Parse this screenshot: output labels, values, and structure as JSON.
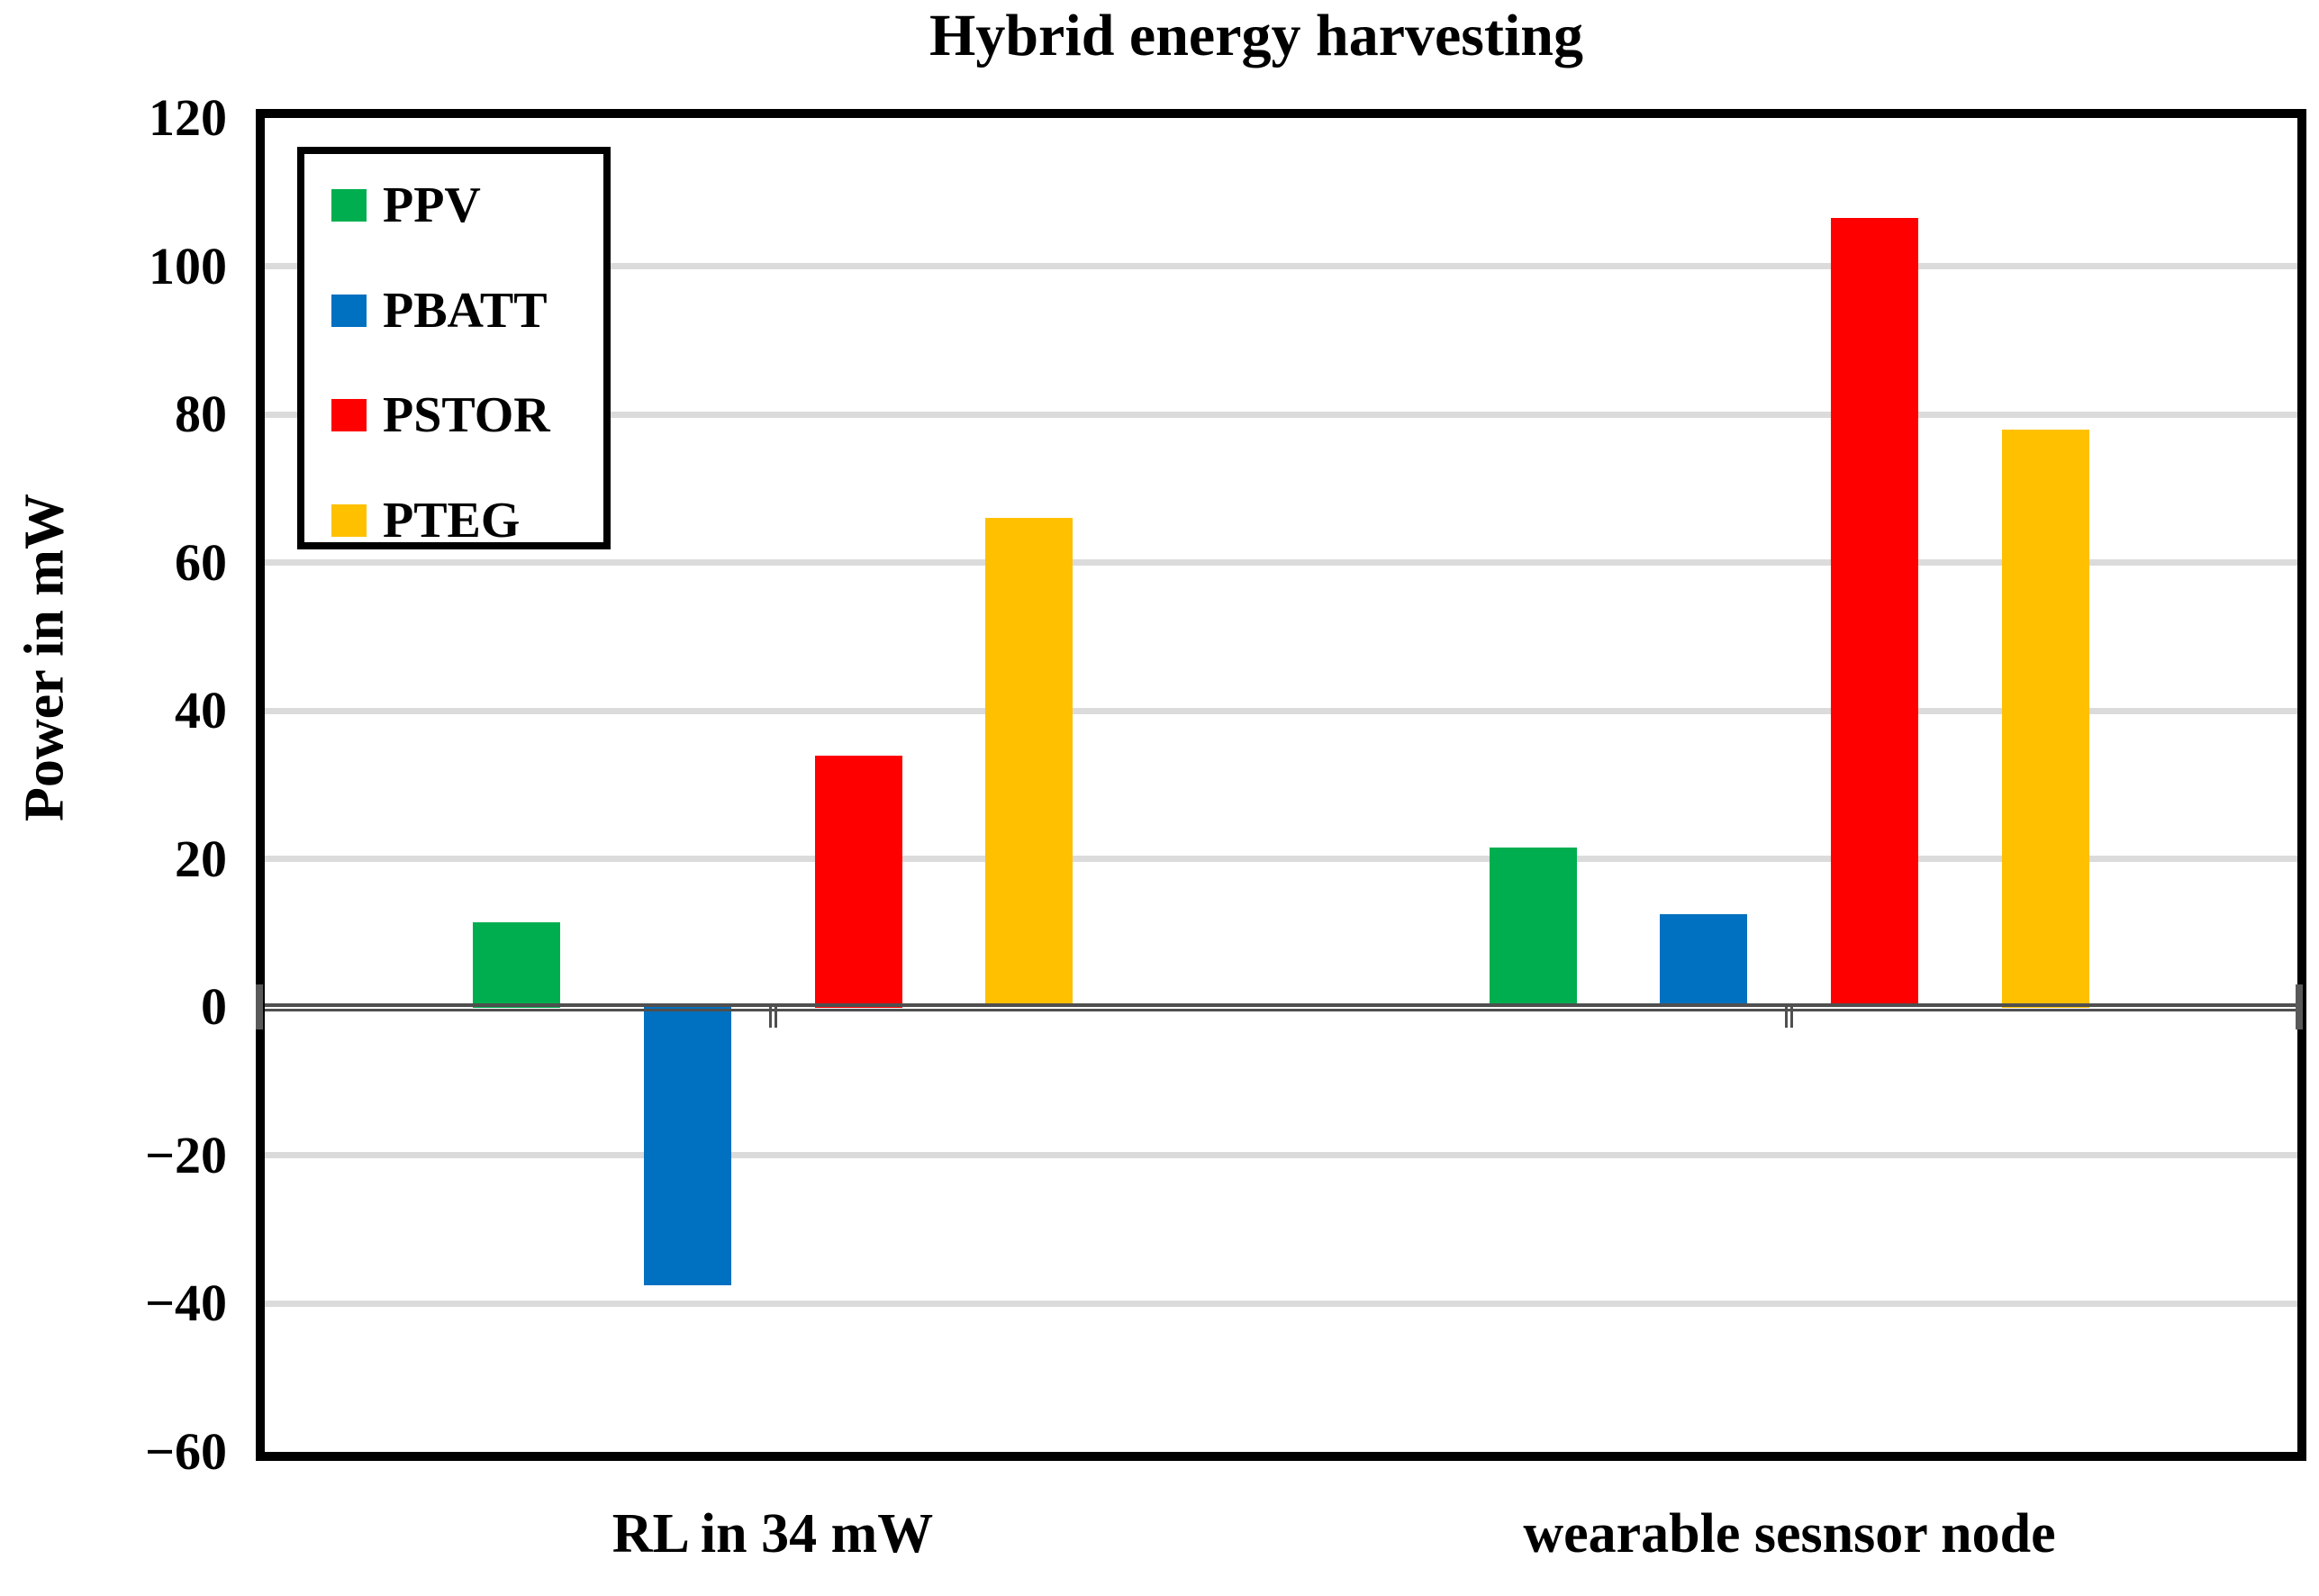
{
  "title": "Hybrid energy harvesting",
  "y_axis": {
    "label": "Power in mW",
    "tick_values": [
      120,
      100,
      80,
      60,
      40,
      20,
      0,
      -20,
      -40,
      -60
    ],
    "tick_labels": [
      "120",
      "100",
      "80",
      "60",
      "40",
      "20",
      "0",
      "−20",
      "−40",
      "−60"
    ]
  },
  "x_axis": {
    "category_labels": [
      "RL in 34 mW",
      "wearable sesnsor node"
    ]
  },
  "legend": {
    "entries": [
      "PPV",
      "PBATT",
      "PSTOR",
      "PTEG"
    ]
  },
  "colors": {
    "ppv": "#00ae4f",
    "pbatt": "#0070c0",
    "pstor": "#ff0000",
    "pteg": "#ffc000",
    "gridline": "#dbdbdb",
    "axis_line": "#4f4f4f",
    "plot_border": "#000000"
  },
  "chart_data": {
    "type": "bar",
    "title": "Hybrid energy harvesting",
    "categories": [
      "RL in 34 mW",
      "wearable sesnsor node"
    ],
    "series": [
      {
        "name": "PPV",
        "color": "#00ae4f",
        "values": [
          11.5,
          21.5
        ]
      },
      {
        "name": "PBATT",
        "color": "#0070c0",
        "values": [
          -37.5,
          12.5
        ]
      },
      {
        "name": "PSTOR",
        "color": "#ff0000",
        "values": [
          34,
          106.5
        ]
      },
      {
        "name": "PTEG",
        "color": "#ffc000",
        "values": [
          66,
          78
        ]
      }
    ],
    "xlabel": "",
    "ylabel": "Power in mW",
    "ylim": [
      -60,
      120
    ],
    "ytick_step": 20,
    "grid": true,
    "legend_position": "top-left-inside"
  }
}
